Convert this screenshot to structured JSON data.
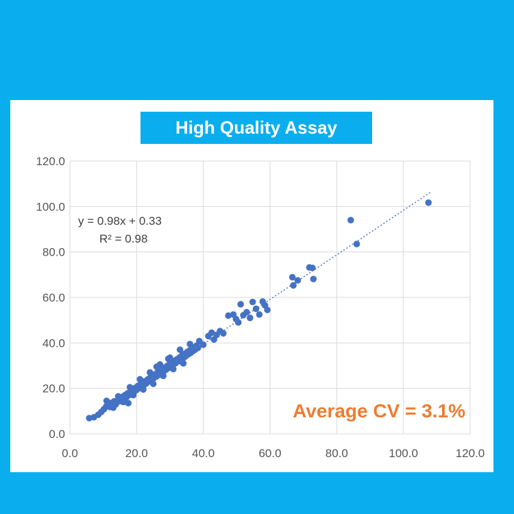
{
  "background_color": "#0aaeef",
  "chart_data": {
    "type": "scatter",
    "title": "High Quality Assay",
    "xlim": [
      0,
      120
    ],
    "ylim": [
      0,
      120
    ],
    "x_ticks": [
      "0.0",
      "20.0",
      "40.0",
      "60.0",
      "80.0",
      "100.0",
      "120.0"
    ],
    "y_ticks": [
      "0.0",
      "20.0",
      "40.0",
      "60.0",
      "80.0",
      "100.0",
      "120.0"
    ],
    "grid": true,
    "marker_color": "#4472c4",
    "trendline": {
      "slope": 0.98,
      "intercept": 0.33,
      "x_range": [
        6,
        108
      ],
      "equation_label": "y = 0.98x + 0.33",
      "r2_label": "R² = 0.98",
      "style": "dotted"
    },
    "annotation": {
      "text": "Average CV = 3.1%",
      "color": "#ed7d31"
    },
    "points": [
      [
        5.8,
        6.9
      ],
      [
        7.2,
        7.3
      ],
      [
        8.5,
        8.4
      ],
      [
        9.4,
        9.6
      ],
      [
        10.2,
        10.8
      ],
      [
        10.9,
        12.1
      ],
      [
        11.5,
        12.9
      ],
      [
        12.0,
        11.8
      ],
      [
        12.4,
        13.6
      ],
      [
        12.9,
        12.6
      ],
      [
        13.3,
        14.3
      ],
      [
        13.7,
        12.9
      ],
      [
        14.1,
        13.8
      ],
      [
        14.6,
        15.1
      ],
      [
        15.0,
        14.4
      ],
      [
        15.4,
        15.8
      ],
      [
        15.9,
        16.4
      ],
      [
        16.2,
        15.4
      ],
      [
        16.6,
        17.1
      ],
      [
        17.0,
        16.2
      ],
      [
        17.3,
        17.8
      ],
      [
        17.7,
        17.0
      ],
      [
        18.1,
        18.6
      ],
      [
        18.5,
        17.6
      ],
      [
        18.9,
        19.4
      ],
      [
        19.2,
        18.4
      ],
      [
        19.6,
        20.2
      ],
      [
        20.0,
        19.3
      ],
      [
        20.3,
        21.0
      ],
      [
        20.7,
        20.1
      ],
      [
        21.1,
        21.7
      ],
      [
        21.4,
        20.8
      ],
      [
        21.8,
        22.4
      ],
      [
        22.2,
        21.5
      ],
      [
        22.5,
        23.1
      ],
      [
        22.9,
        22.2
      ],
      [
        23.3,
        23.9
      ],
      [
        23.6,
        23.0
      ],
      [
        24.0,
        24.6
      ],
      [
        24.4,
        23.7
      ],
      [
        24.8,
        25.4
      ],
      [
        25.1,
        24.5
      ],
      [
        25.5,
        26.1
      ],
      [
        25.9,
        25.2
      ],
      [
        26.2,
        26.9
      ],
      [
        26.6,
        25.9
      ],
      [
        27.0,
        27.7
      ],
      [
        27.3,
        26.7
      ],
      [
        27.7,
        28.4
      ],
      [
        28.1,
        27.4
      ],
      [
        28.4,
        29.1
      ],
      [
        28.8,
        28.2
      ],
      [
        29.2,
        29.9
      ],
      [
        29.5,
        28.9
      ],
      [
        29.9,
        30.6
      ],
      [
        30.3,
        29.6
      ],
      [
        30.6,
        31.4
      ],
      [
        31.0,
        30.4
      ],
      [
        31.4,
        32.1
      ],
      [
        31.7,
        31.1
      ],
      [
        32.1,
        32.8
      ],
      [
        32.5,
        31.9
      ],
      [
        32.9,
        33.6
      ],
      [
        33.2,
        32.6
      ],
      [
        33.6,
        34.4
      ],
      [
        34.0,
        33.4
      ],
      [
        34.3,
        35.1
      ],
      [
        34.7,
        34.1
      ],
      [
        35.1,
        35.9
      ],
      [
        35.4,
        34.9
      ],
      [
        35.8,
        36.6
      ],
      [
        36.2,
        35.6
      ],
      [
        36.5,
        37.4
      ],
      [
        36.9,
        36.4
      ],
      [
        37.3,
        38.1
      ],
      [
        37.6,
        37.1
      ],
      [
        38.0,
        38.8
      ],
      [
        38.4,
        37.9
      ],
      [
        13.0,
        11.5
      ],
      [
        16.0,
        14.0
      ],
      [
        19.0,
        17.0
      ],
      [
        22.0,
        19.5
      ],
      [
        25.0,
        22.0
      ],
      [
        28.0,
        25.5
      ],
      [
        31.0,
        28.5
      ],
      [
        34.0,
        31.0
      ],
      [
        14.5,
        16.5
      ],
      [
        18.0,
        20.5
      ],
      [
        21.0,
        24.0
      ],
      [
        24.0,
        27.0
      ],
      [
        27.0,
        30.5
      ],
      [
        30.0,
        33.5
      ],
      [
        33.0,
        37.0
      ],
      [
        36.0,
        39.5
      ],
      [
        11.0,
        14.5
      ],
      [
        17.5,
        13.5
      ],
      [
        26.0,
        29.5
      ],
      [
        29.5,
        33.0
      ],
      [
        38.8,
        40.8
      ],
      [
        40.0,
        39.2
      ],
      [
        41.5,
        43.0
      ],
      [
        42.5,
        44.5
      ],
      [
        43.2,
        41.5
      ],
      [
        44.0,
        43.5
      ],
      [
        45.0,
        45.2
      ],
      [
        46.0,
        44.2
      ],
      [
        47.5,
        52.0
      ],
      [
        49.0,
        52.5
      ],
      [
        49.8,
        50.5
      ],
      [
        50.5,
        49.0
      ],
      [
        51.2,
        57.0
      ],
      [
        52.0,
        52.2
      ],
      [
        53.0,
        53.5
      ],
      [
        54.0,
        51.0
      ],
      [
        54.8,
        58.0
      ],
      [
        55.8,
        55.0
      ],
      [
        56.8,
        52.5
      ],
      [
        57.8,
        58.2
      ],
      [
        58.5,
        56.5
      ],
      [
        59.2,
        54.5
      ],
      [
        66.7,
        68.9
      ],
      [
        67.0,
        65.3
      ],
      [
        68.3,
        67.5
      ],
      [
        71.8,
        73.2
      ],
      [
        72.7,
        73.0
      ],
      [
        73.0,
        68.1
      ],
      [
        84.2,
        94.0
      ],
      [
        86.0,
        83.5
      ],
      [
        107.5,
        101.7
      ]
    ]
  }
}
